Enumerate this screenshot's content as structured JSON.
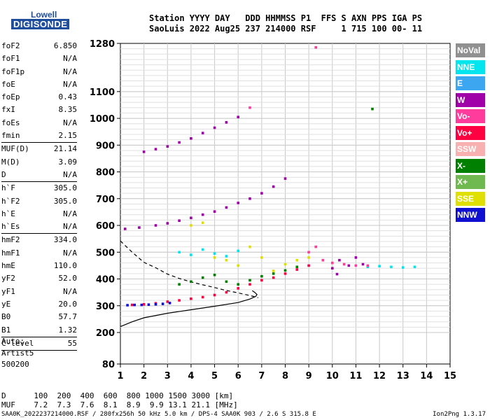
{
  "logo": {
    "line1": "Lowell",
    "line2": "DIGISONDE"
  },
  "header": {
    "line1": "Station YYYY DAY   DDD HHMMSS P1  FFS S AXN PPS IGA PS",
    "line2": "SaoLuis 2022 Aug25 237 214000 RSF     1 715 100 00- 11"
  },
  "params": [
    {
      "name": "foF2",
      "value": "6.850"
    },
    {
      "name": "foF1",
      "value": "N/A"
    },
    {
      "name": "foF1p",
      "value": "N/A"
    },
    {
      "name": "foE",
      "value": "N/A"
    },
    {
      "name": "foEp",
      "value": "0.43"
    },
    {
      "name": "fxI",
      "value": "8.35"
    },
    {
      "name": "foEs",
      "value": "N/A"
    },
    {
      "name": "fmin",
      "value": "2.15",
      "sep": true
    },
    {
      "name": "MUF(D)",
      "value": "21.14"
    },
    {
      "name": "M(D)",
      "value": "3.09"
    },
    {
      "name": "D",
      "value": "N/A",
      "sep": true
    },
    {
      "name": "h`F",
      "value": "305.0"
    },
    {
      "name": "h`F2",
      "value": "305.0"
    },
    {
      "name": "h`E",
      "value": "N/A"
    },
    {
      "name": "h`Es",
      "value": "N/A",
      "sep": true
    },
    {
      "name": "hmF2",
      "value": "334.0"
    },
    {
      "name": "hmF1",
      "value": "N/A"
    },
    {
      "name": "hmE",
      "value": "110.0"
    },
    {
      "name": "yF2",
      "value": "52.0"
    },
    {
      "name": "yF1",
      "value": "N/A"
    },
    {
      "name": "yE",
      "value": "20.0"
    },
    {
      "name": "B0",
      "value": "57.7"
    },
    {
      "name": "B1",
      "value": "1.32",
      "sep": true
    },
    {
      "name": "C-level",
      "value": "55",
      "sep": true
    }
  ],
  "auto": [
    "Auto:",
    "Artist5",
    "500200"
  ],
  "legend": [
    {
      "label": "NoVal",
      "color": "#909090"
    },
    {
      "label": "NNE",
      "color": "#00e5ee"
    },
    {
      "label": "E",
      "color": "#3ca6f0"
    },
    {
      "label": "W",
      "color": "#a000a8"
    },
    {
      "label": "Vo-",
      "color": "#ff3c9c"
    },
    {
      "label": "Vo+",
      "color": "#ff0040"
    },
    {
      "label": "SSW",
      "color": "#f8b0b0"
    },
    {
      "label": "X-",
      "color": "#008000"
    },
    {
      "label": "X+",
      "color": "#70b850"
    },
    {
      "label": "SSE",
      "color": "#e0e000"
    },
    {
      "label": "NNW",
      "color": "#1010d0"
    }
  ],
  "muf_table": {
    "row1": "D      100  200  400  600  800 1000 1500 3000 [km]",
    "row2": "MUF    7.2  7.3  7.6  8.1  8.9  9.9 13.1 21.1 [MHz]"
  },
  "footer": {
    "left": "SAA0K_2022237214000.RSF / 280fx256h 50 kHz 5.0 km / DPS-4 SAA0K 903 / 2.6 S 315.8 E",
    "right": "Ion2Png 1.3.17"
  },
  "chart_data": {
    "type": "scatter",
    "xlim": [
      1,
      15
    ],
    "ylim": [
      80,
      1280
    ],
    "x_ticks": [
      "1",
      "2",
      "3",
      "4",
      "5",
      "6",
      "7",
      "8",
      "9",
      "10",
      "11",
      "12",
      "13",
      "14",
      "15"
    ],
    "y_ticks": [
      "80",
      "200",
      "300",
      "400",
      "500",
      "600",
      "700",
      "800",
      "900",
      "1000",
      "1100",
      "1280"
    ],
    "grid": true,
    "series": [
      {
        "name": "Vo+ F2 trace",
        "color": "#ff0040",
        "points": [
          [
            1.5,
            303
          ],
          [
            2,
            305
          ],
          [
            2.5,
            309
          ],
          [
            3,
            315
          ],
          [
            3.5,
            320
          ],
          [
            4,
            326
          ],
          [
            4.5,
            332
          ],
          [
            5,
            340
          ],
          [
            5.5,
            350
          ],
          [
            6,
            365
          ],
          [
            6.5,
            380
          ],
          [
            7,
            395
          ],
          [
            7.5,
            405
          ],
          [
            8,
            420
          ],
          [
            8.5,
            435
          ],
          [
            9,
            450
          ]
        ]
      },
      {
        "name": "NNW low",
        "color": "#1010d0",
        "points": [
          [
            1.3,
            302
          ],
          [
            1.6,
            303
          ],
          [
            1.9,
            303
          ],
          [
            2.2,
            304
          ],
          [
            2.5,
            305
          ],
          [
            2.8,
            307
          ],
          [
            3.1,
            310
          ]
        ]
      },
      {
        "name": "W 2nd hop",
        "color": "#a000a8",
        "points": [
          [
            1.2,
            587
          ],
          [
            1.8,
            592
          ],
          [
            2.5,
            600
          ],
          [
            3,
            608
          ],
          [
            3.5,
            618
          ],
          [
            4,
            628
          ],
          [
            4.5,
            640
          ],
          [
            5,
            652
          ],
          [
            5.5,
            667
          ],
          [
            6,
            684
          ],
          [
            6.5,
            700
          ],
          [
            7,
            720
          ],
          [
            7.5,
            745
          ],
          [
            8,
            775
          ]
        ]
      },
      {
        "name": "W 3rd hop",
        "color": "#a000a8",
        "points": [
          [
            2,
            875
          ],
          [
            2.5,
            885
          ],
          [
            3,
            895
          ],
          [
            3.5,
            910
          ],
          [
            4,
            925
          ],
          [
            4.5,
            945
          ],
          [
            5,
            965
          ],
          [
            5.5,
            985
          ],
          [
            6,
            1005
          ]
        ]
      },
      {
        "name": "X- lower",
        "color": "#008000",
        "points": [
          [
            3.5,
            380
          ],
          [
            4,
            390
          ],
          [
            4.5,
            405
          ],
          [
            5,
            415
          ],
          [
            5.5,
            390
          ],
          [
            6,
            380
          ],
          [
            6.5,
            395
          ],
          [
            7,
            410
          ],
          [
            7.5,
            420
          ],
          [
            8,
            432
          ],
          [
            8.5,
            445
          ]
        ]
      },
      {
        "name": "SSE spread",
        "color": "#e0e000",
        "points": [
          [
            4,
            600
          ],
          [
            4.5,
            610
          ],
          [
            5,
            480
          ],
          [
            5.5,
            470
          ],
          [
            6,
            450
          ],
          [
            6.5,
            520
          ],
          [
            7,
            480
          ],
          [
            7.5,
            430
          ],
          [
            8,
            455
          ],
          [
            8.5,
            470
          ],
          [
            9,
            480
          ]
        ]
      },
      {
        "name": "NNE spread",
        "color": "#00e5ee",
        "points": [
          [
            3.5,
            500
          ],
          [
            4,
            490
          ],
          [
            4.5,
            510
          ],
          [
            5,
            495
          ],
          [
            5.5,
            485
          ],
          [
            6,
            505
          ],
          [
            11.5,
            445
          ],
          [
            12,
            448
          ],
          [
            12.5,
            445
          ],
          [
            13,
            443
          ],
          [
            13.5,
            445
          ]
        ]
      },
      {
        "name": "Vo- cluster",
        "color": "#ff3c9c",
        "points": [
          [
            9,
            500
          ],
          [
            9.3,
            520
          ],
          [
            9.6,
            470
          ],
          [
            10,
            460
          ],
          [
            10.5,
            455
          ],
          [
            11,
            450
          ],
          [
            11.5,
            450
          ],
          [
            9.3,
            1265
          ],
          [
            6.5,
            1040
          ]
        ]
      },
      {
        "name": "W cluster",
        "color": "#a000a8",
        "points": [
          [
            10,
            440
          ],
          [
            10.3,
            470
          ],
          [
            10.7,
            450
          ],
          [
            11,
            480
          ],
          [
            11.3,
            455
          ],
          [
            10.2,
            418
          ]
        ]
      },
      {
        "name": "X-",
        "color": "#008000",
        "points": [
          [
            11.7,
            1035
          ]
        ]
      }
    ],
    "curves": [
      {
        "name": "profile-solid",
        "style": "solid",
        "points": [
          [
            1,
            222
          ],
          [
            1.5,
            240
          ],
          [
            2,
            255
          ],
          [
            3,
            272
          ],
          [
            4,
            285
          ],
          [
            5,
            298
          ],
          [
            6,
            312
          ],
          [
            6.5,
            325
          ],
          [
            6.75,
            335
          ],
          [
            6.8,
            342
          ],
          [
            6.7,
            350
          ],
          [
            6.6,
            356
          ]
        ]
      },
      {
        "name": "profile-dashed",
        "style": "dashed",
        "points": [
          [
            1,
            542
          ],
          [
            1.5,
            500
          ],
          [
            2,
            462
          ],
          [
            2.5,
            442
          ],
          [
            3,
            418
          ],
          [
            3.5,
            402
          ],
          [
            4,
            389
          ],
          [
            4.5,
            378
          ],
          [
            5,
            368
          ],
          [
            5.5,
            357
          ],
          [
            6,
            348
          ],
          [
            6.5,
            338
          ],
          [
            6.85,
            330
          ]
        ]
      }
    ]
  }
}
